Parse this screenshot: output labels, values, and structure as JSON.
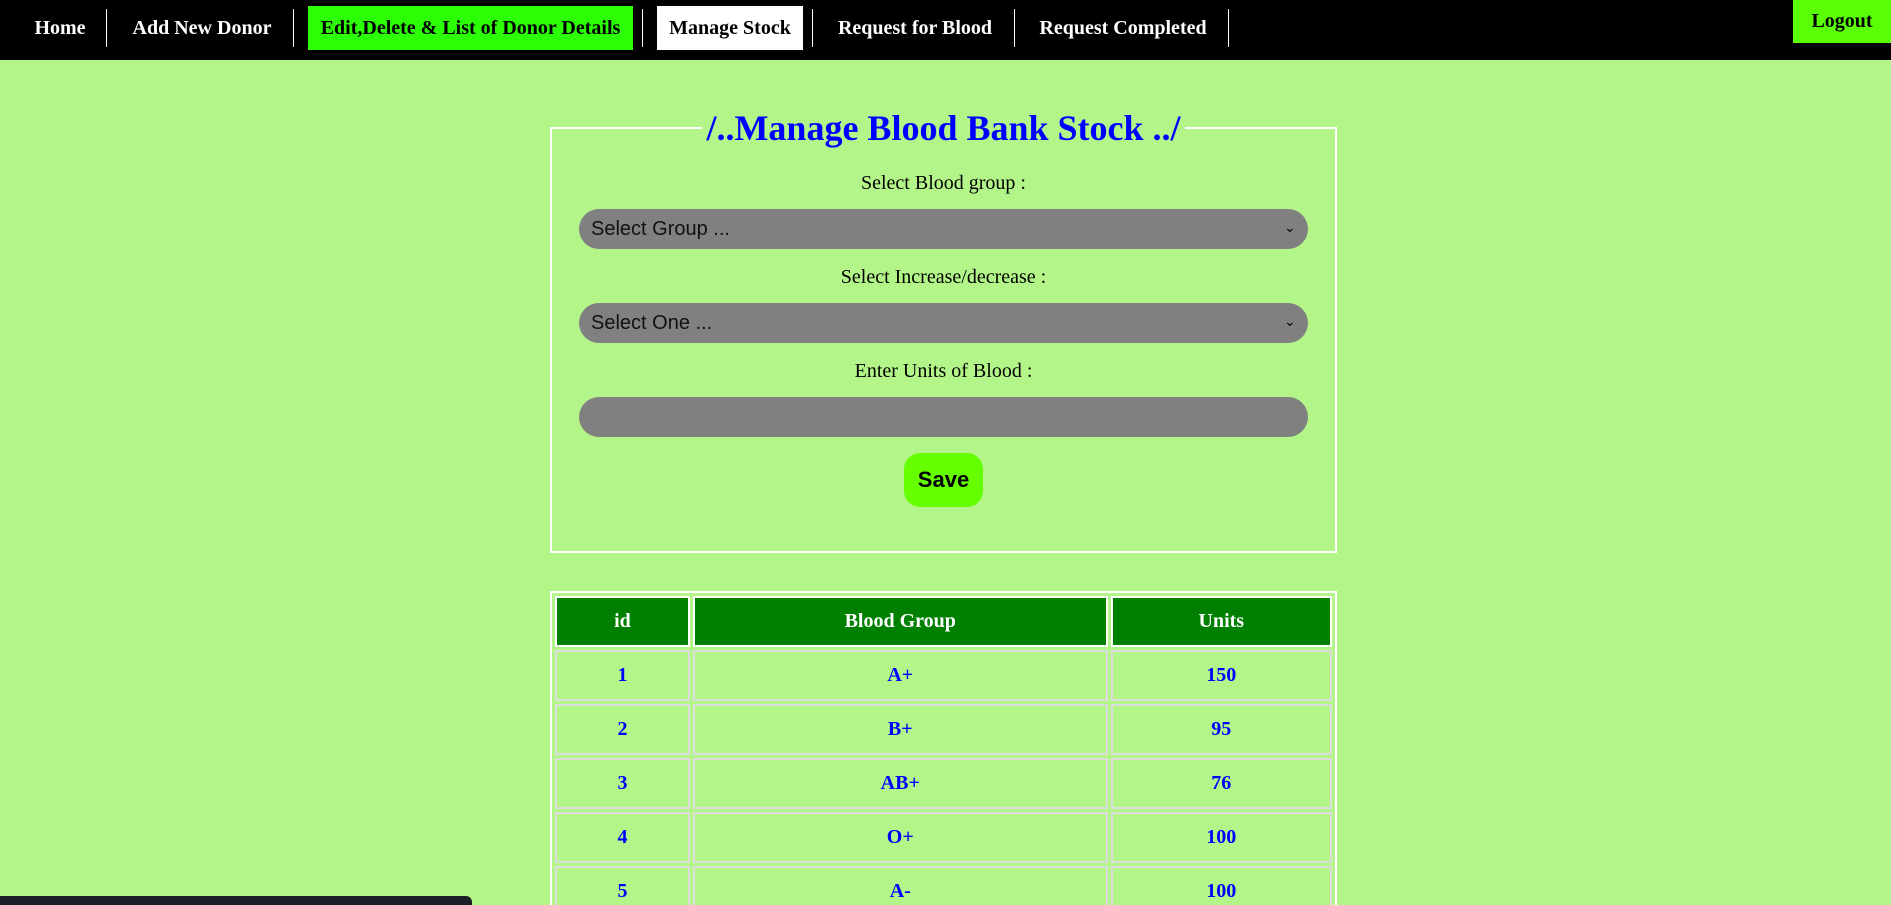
{
  "nav": {
    "home": "Home",
    "add_donor": "Add New Donor",
    "edit_list": "Edit,Delete & List of Donor Details",
    "manage_stock": "Manage Stock",
    "request_blood": "Request for Blood",
    "request_completed": "Request Completed",
    "logout": "Logout"
  },
  "form": {
    "title": "/..Manage Blood Bank Stock ../",
    "blood_group_label": "Select Blood group :",
    "blood_group_value": "Select Group ...",
    "change_label": "Select Increase/decrease :",
    "change_value": "Select One ...",
    "units_label": "Enter Units of Blood :",
    "units_value": "",
    "save_label": "Save"
  },
  "table": {
    "headers": [
      "id",
      "Blood Group",
      "Units"
    ],
    "rows": [
      [
        "1",
        "A+",
        "150"
      ],
      [
        "2",
        "B+",
        "95"
      ],
      [
        "3",
        "AB+",
        "76"
      ],
      [
        "4",
        "O+",
        "100"
      ],
      [
        "5",
        "A-",
        "100"
      ]
    ]
  },
  "colors": {
    "background": "#b3f588",
    "nav_active": "#2cff05",
    "table_header": "#008000",
    "title": "#0000ff"
  }
}
